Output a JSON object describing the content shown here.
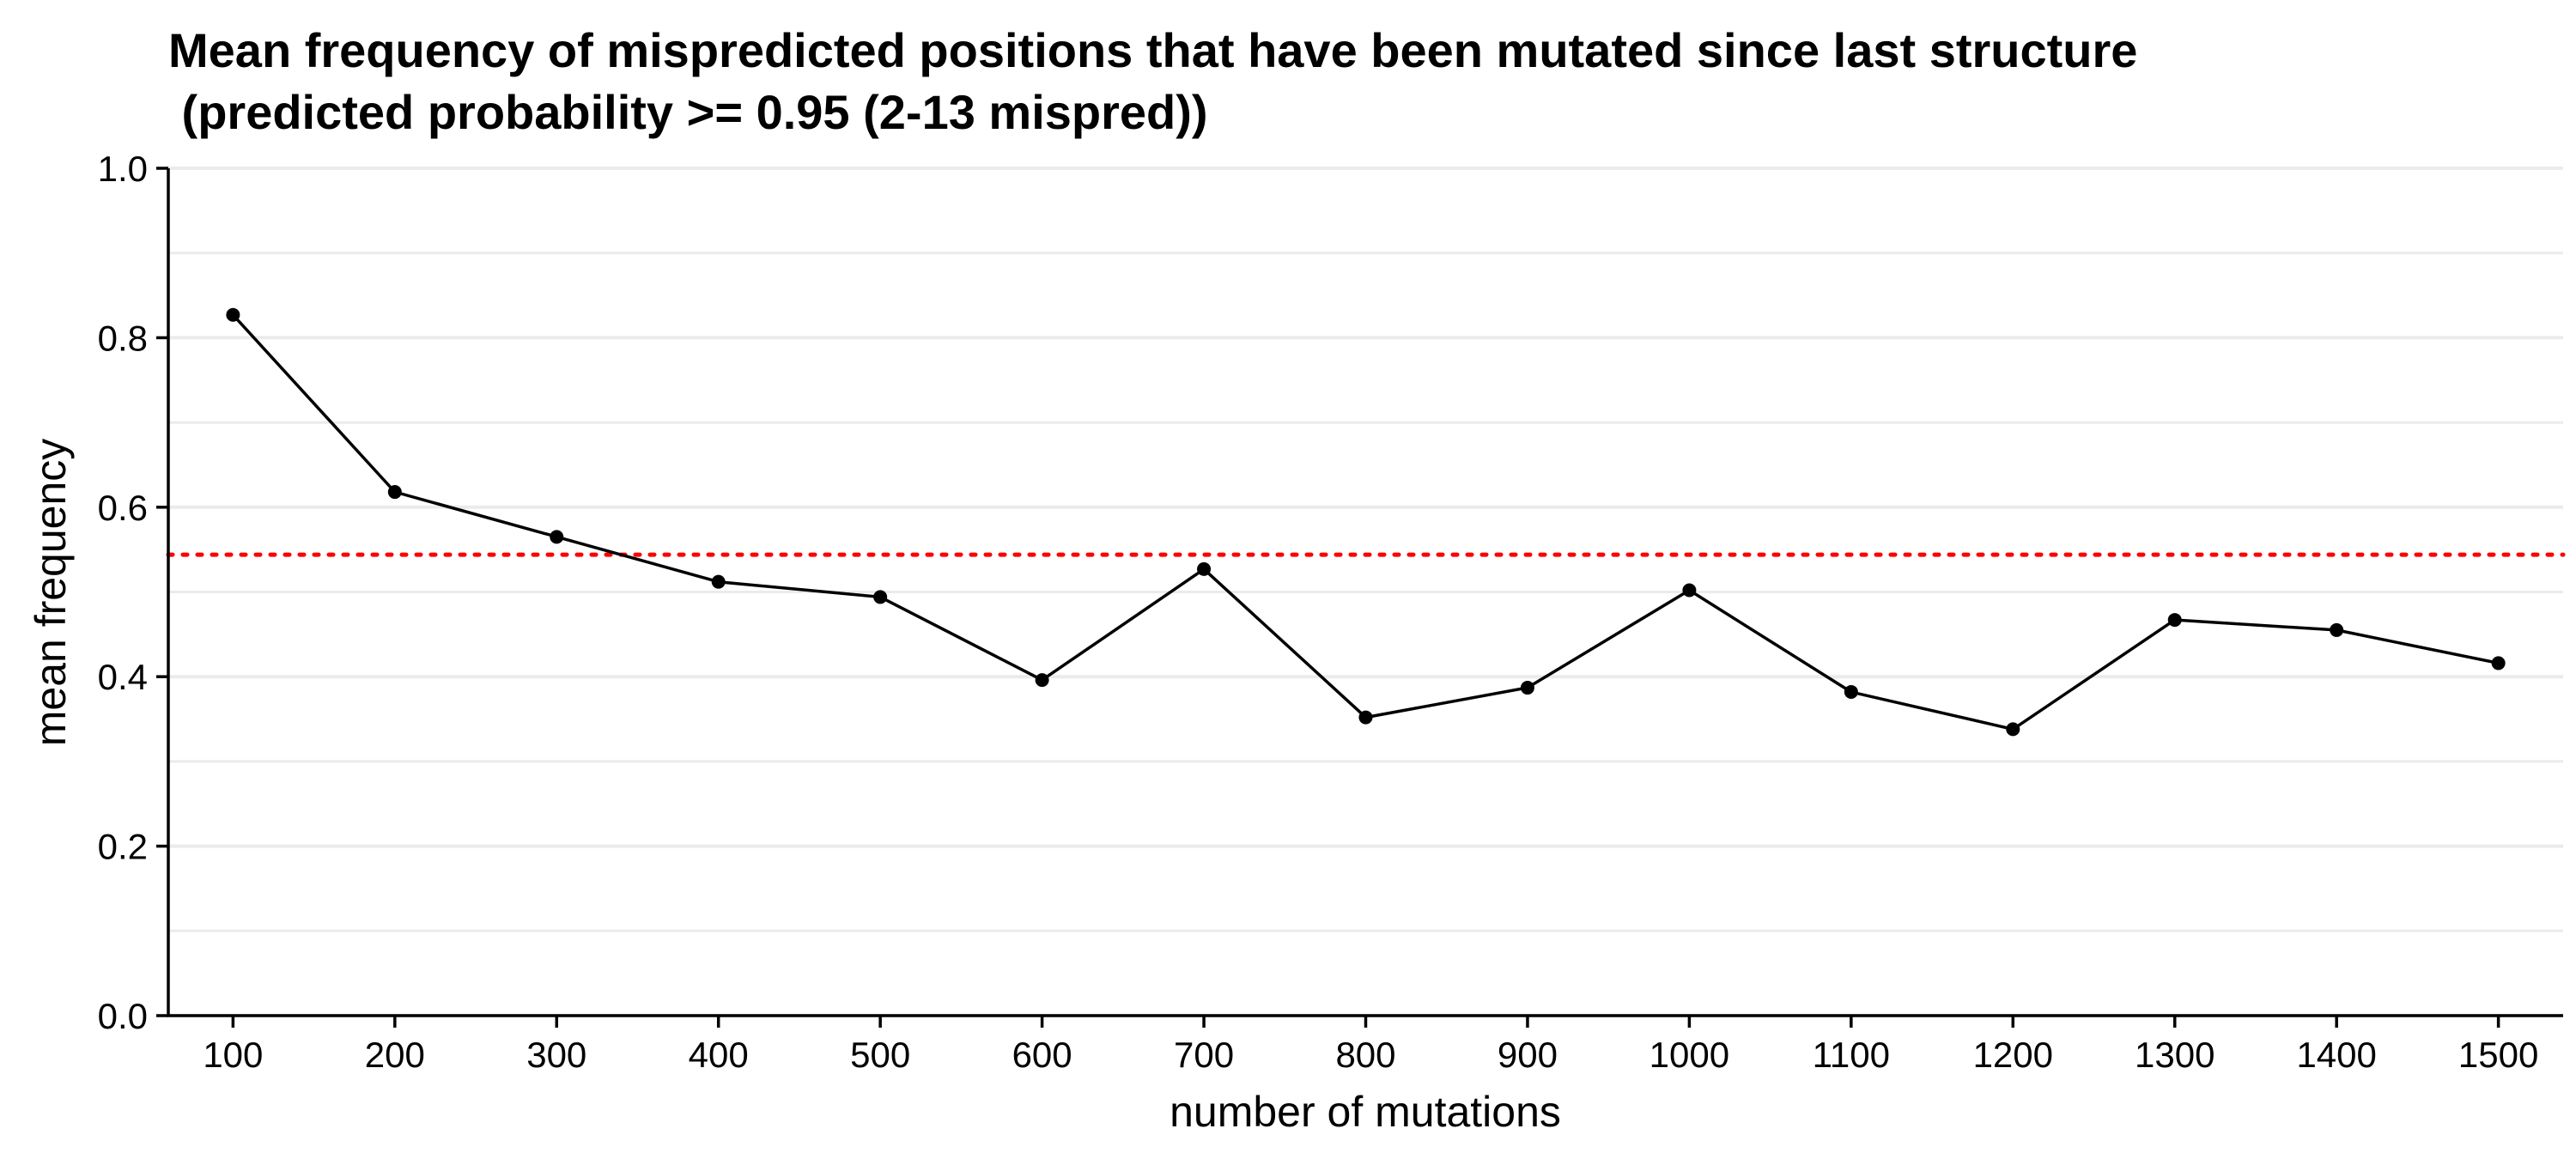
{
  "chart_data": {
    "type": "line",
    "title": "Mean frequency of mispredicted positions that have been mutated since last structure",
    "subtitle": " (predicted probability >= 0.95 (2-13 mispred))",
    "xlabel": "number of mutations",
    "ylabel": "mean frequency",
    "x_ticks": [
      "100",
      "200",
      "300",
      "400",
      "500",
      "600",
      "700",
      "800",
      "900",
      "1000",
      "1100",
      "1200",
      "1300",
      "1400",
      "1500"
    ],
    "y_ticks": [
      "0.0",
      "0.2",
      "0.4",
      "0.6",
      "0.8",
      "1.0"
    ],
    "x": [
      100,
      200,
      300,
      400,
      500,
      600,
      700,
      800,
      900,
      1000,
      1100,
      1200,
      1300,
      1400,
      1500
    ],
    "y": [
      0.827,
      0.618,
      0.565,
      0.512,
      0.494,
      0.396,
      0.527,
      0.352,
      0.387,
      0.502,
      0.382,
      0.338,
      0.467,
      0.455,
      0.416
    ],
    "xlim": [
      60,
      1540
    ],
    "ylim": [
      0,
      1
    ],
    "reference_line": {
      "y": 0.544,
      "style": "dotted",
      "color": "#ff0000"
    },
    "grid": "horizontal",
    "line_color": "#000000",
    "point_color": "#000000",
    "grid_color": "#ebebeb"
  }
}
